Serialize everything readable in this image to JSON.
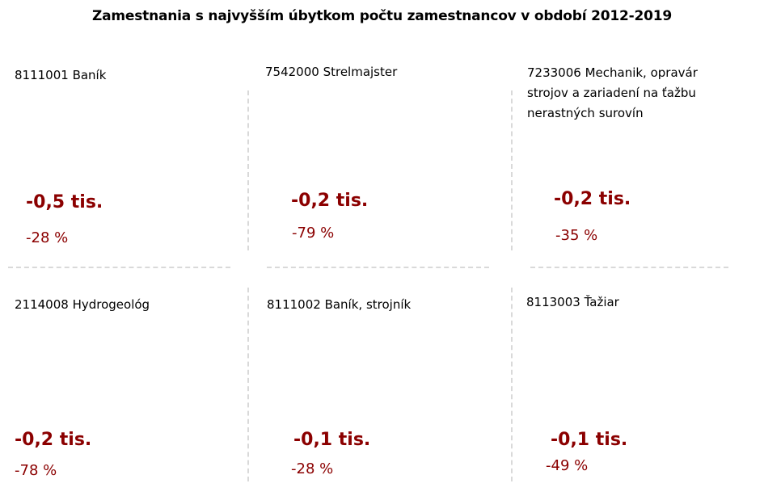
{
  "title": "Zamestnania s najvyšším úbytkom počtu zamestnancov v období 2012-2019",
  "colors": {
    "accent": "#8B0000",
    "separator": "#d9d9d9"
  },
  "cards": [
    {
      "label": "8111001 Baník",
      "value": "-0,5 tis.",
      "percent": "-28 %"
    },
    {
      "label": "7542000 Strelmajster",
      "value": "-0,2 tis.",
      "percent": "-79 %"
    },
    {
      "label": "7233006 Mechanik, opravár strojov a zariadení na ťažbu nerastných surovín",
      "value": "-0,2 tis.",
      "percent": "-35 %"
    },
    {
      "label": "2114008 Hydrogeológ",
      "value": "-0,2 tis.",
      "percent": "-78 %"
    },
    {
      "label": "8111002 Baník, strojník",
      "value": "-0,1 tis.",
      "percent": "-28 %"
    },
    {
      "label": "8113003 Ťažiar",
      "value": "-0,1 tis.",
      "percent": "-49 %"
    }
  ]
}
